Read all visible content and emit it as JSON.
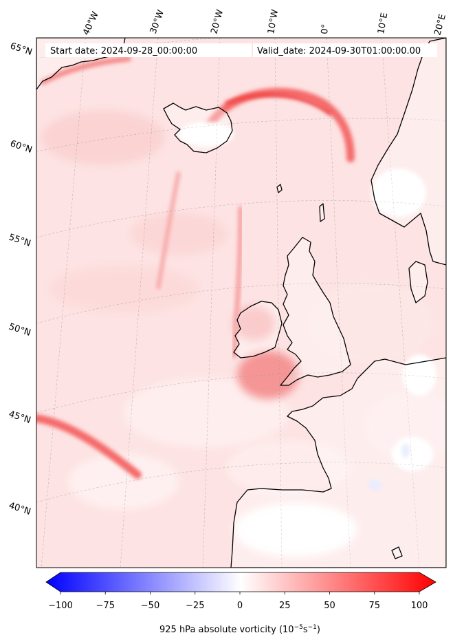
{
  "header": {
    "start_date": "Start date: 2024-09-28_00:00:00",
    "valid_date": "Valid_date: 2024-09-30T01:00:00.00"
  },
  "lon_labels": [
    "40°W",
    "30°W",
    "20°W",
    "10°W",
    "0°",
    "10°E",
    "20°E"
  ],
  "lat_labels": [
    "65°N",
    "60°N",
    "55°N",
    "50°N",
    "45°N",
    "40°N"
  ],
  "colorbar": {
    "ticks": [
      "−100",
      "−75",
      "−50",
      "−25",
      "0",
      "25",
      "50",
      "75",
      "100"
    ],
    "label_prefix": "925 hPa absolute vorticity (10",
    "label_exp1": "−5",
    "label_mid": "s",
    "label_exp2": "−1",
    "label_suffix": ")",
    "min_value": -100,
    "max_value": 100
  },
  "colors": {
    "land_outline": "#000000",
    "negative": "#0000ff",
    "positive": "#ff0000",
    "neutral": "#ffffff"
  }
}
